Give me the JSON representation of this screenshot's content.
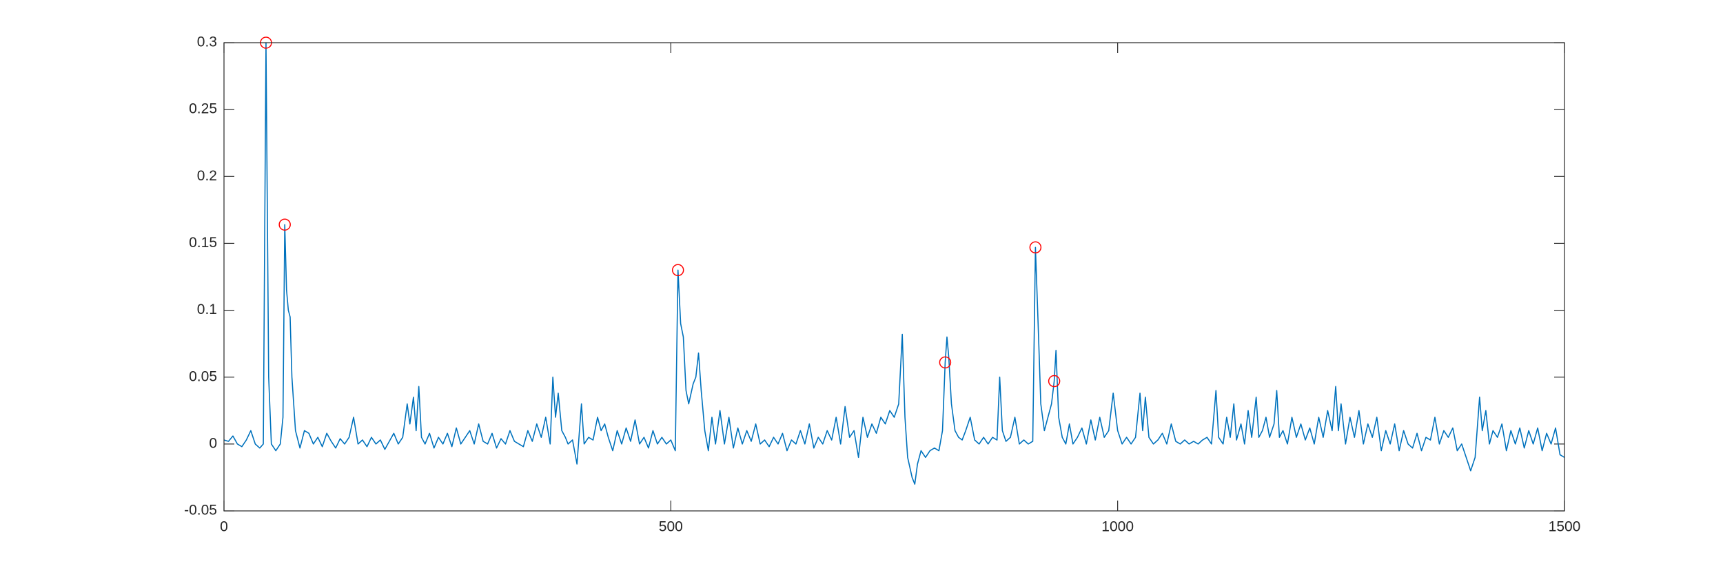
{
  "chart_data": {
    "type": "line",
    "xlim": [
      0,
      1500
    ],
    "xticks": [
      0,
      500,
      1000,
      1500
    ],
    "ylim": [
      -0.05,
      0.3
    ],
    "yticks": [
      -0.05,
      0,
      0.05,
      0.1,
      0.15,
      0.2,
      0.25,
      0.3
    ],
    "series": [
      {
        "color": "#0072bd",
        "x": [
          0,
          5,
          10,
          15,
          20,
          25,
          30,
          35,
          40,
          44,
          47,
          50,
          53,
          58,
          63,
          66,
          68,
          70,
          72,
          74,
          76,
          78,
          80,
          85,
          90,
          95,
          100,
          105,
          110,
          115,
          120,
          125,
          130,
          135,
          140,
          145,
          150,
          155,
          160,
          165,
          170,
          175,
          180,
          185,
          190,
          195,
          200,
          205,
          208,
          212,
          215,
          218,
          221,
          225,
          230,
          235,
          240,
          245,
          250,
          255,
          260,
          265,
          270,
          275,
          280,
          285,
          290,
          295,
          300,
          305,
          310,
          315,
          320,
          325,
          330,
          335,
          340,
          345,
          350,
          355,
          360,
          365,
          368,
          371,
          374,
          378,
          382,
          385,
          390,
          395,
          400,
          403,
          408,
          413,
          418,
          422,
          426,
          430,
          435,
          440,
          445,
          450,
          455,
          460,
          465,
          470,
          475,
          480,
          485,
          490,
          495,
          500,
          505,
          508,
          511,
          514,
          517,
          520,
          525,
          528,
          531,
          534,
          538,
          542,
          546,
          550,
          555,
          560,
          565,
          570,
          575,
          580,
          585,
          590,
          595,
          600,
          605,
          610,
          615,
          620,
          625,
          630,
          635,
          640,
          645,
          650,
          655,
          660,
          665,
          670,
          675,
          680,
          685,
          690,
          695,
          700,
          705,
          710,
          715,
          720,
          725,
          730,
          735,
          740,
          745,
          750,
          755,
          759,
          762,
          765,
          770,
          773,
          776,
          780,
          785,
          790,
          795,
          800,
          804,
          807,
          809,
          811,
          814,
          818,
          822,
          826,
          830,
          835,
          840,
          845,
          850,
          855,
          860,
          865,
          868,
          871,
          875,
          880,
          885,
          890,
          895,
          900,
          905,
          908,
          911,
          914,
          918,
          922,
          926,
          929,
          931,
          934,
          938,
          942,
          946,
          950,
          955,
          960,
          965,
          970,
          975,
          980,
          985,
          990,
          995,
          1000,
          1005,
          1010,
          1015,
          1020,
          1025,
          1028,
          1031,
          1035,
          1040,
          1045,
          1050,
          1055,
          1060,
          1065,
          1070,
          1075,
          1080,
          1085,
          1090,
          1095,
          1100,
          1105,
          1110,
          1113,
          1118,
          1122,
          1126,
          1130,
          1133,
          1138,
          1142,
          1146,
          1150,
          1155,
          1158,
          1162,
          1166,
          1170,
          1175,
          1178,
          1181,
          1185,
          1190,
          1195,
          1200,
          1205,
          1210,
          1215,
          1220,
          1225,
          1230,
          1235,
          1240,
          1244,
          1247,
          1250,
          1255,
          1260,
          1265,
          1270,
          1275,
          1280,
          1285,
          1290,
          1295,
          1300,
          1305,
          1310,
          1315,
          1320,
          1325,
          1330,
          1335,
          1340,
          1345,
          1350,
          1355,
          1360,
          1365,
          1370,
          1375,
          1380,
          1385,
          1390,
          1395,
          1400,
          1405,
          1408,
          1412,
          1416,
          1420,
          1425,
          1430,
          1435,
          1440,
          1445,
          1450,
          1455,
          1460,
          1465,
          1470,
          1475,
          1480,
          1485,
          1490,
          1495,
          1500
        ],
        "values": [
          0.003,
          0.002,
          0.006,
          0,
          -0.002,
          0.003,
          0.01,
          0,
          -0.003,
          0,
          0.3,
          0.05,
          0,
          -0.005,
          0,
          0.02,
          0.164,
          0.115,
          0.1,
          0.095,
          0.05,
          0.03,
          0.01,
          -0.003,
          0.01,
          0.008,
          0,
          0.005,
          -0.002,
          0.008,
          0.002,
          -0.003,
          0.004,
          0,
          0.005,
          0.02,
          0,
          0.003,
          -0.002,
          0.005,
          0,
          0.003,
          -0.004,
          0.002,
          0.008,
          0,
          0.005,
          0.03,
          0.015,
          0.035,
          0.01,
          0.043,
          0.005,
          0,
          0.008,
          -0.003,
          0.005,
          0,
          0.008,
          -0.002,
          0.012,
          0,
          0.005,
          0.01,
          0,
          0.015,
          0.002,
          0,
          0.008,
          -0.003,
          0.004,
          0,
          0.01,
          0.002,
          0,
          -0.002,
          0.01,
          0.002,
          0.015,
          0.005,
          0.02,
          0,
          0.05,
          0.02,
          0.038,
          0.01,
          0.005,
          0,
          0.003,
          -0.015,
          0.03,
          0,
          0.005,
          0.003,
          0.02,
          0.01,
          0.015,
          0.005,
          -0.005,
          0.01,
          0,
          0.012,
          0.002,
          0.018,
          0,
          0.005,
          -0.003,
          0.01,
          0,
          0.005,
          0,
          0.003,
          -0.005,
          0.13,
          0.09,
          0.08,
          0.04,
          0.03,
          0.045,
          0.05,
          0.068,
          0.04,
          0.01,
          -0.005,
          0.02,
          0,
          0.025,
          0,
          0.02,
          -0.003,
          0.012,
          0,
          0.01,
          0.002,
          0.015,
          0,
          0.003,
          -0.002,
          0.005,
          0,
          0.008,
          -0.005,
          0.003,
          0,
          0.01,
          0,
          0.015,
          -0.003,
          0.005,
          0,
          0.01,
          0.003,
          0.02,
          0,
          0.028,
          0.005,
          0.01,
          -0.01,
          0.02,
          0.005,
          0.015,
          0.008,
          0.02,
          0.015,
          0.025,
          0.02,
          0.03,
          0.082,
          0.02,
          -0.01,
          -0.025,
          -0.03,
          -0.015,
          -0.005,
          -0.01,
          -0.005,
          -0.003,
          -0.005,
          0.01,
          0.061,
          0.08,
          0.065,
          0.03,
          0.01,
          0.005,
          0.003,
          0.01,
          0.02,
          0.003,
          0,
          0.005,
          0,
          0.005,
          0.003,
          0.05,
          0.01,
          0.002,
          0.005,
          0.02,
          0,
          0.003,
          0,
          0.002,
          0.147,
          0.09,
          0.03,
          0.01,
          0.02,
          0.03,
          0.047,
          0.07,
          0.02,
          0.005,
          0,
          0.015,
          0,
          0.005,
          0.012,
          0,
          0.018,
          0.003,
          0.02,
          0.005,
          0.01,
          0.038,
          0.01,
          0,
          0.005,
          0,
          0.005,
          0.038,
          0.01,
          0.035,
          0.005,
          0,
          0.003,
          0.008,
          0,
          0.015,
          0.002,
          0,
          0.003,
          0,
          0.002,
          0,
          0.003,
          0.005,
          0,
          0.04,
          0.005,
          0,
          0.02,
          0.005,
          0.03,
          0.003,
          0.015,
          0,
          0.025,
          0.005,
          0.035,
          0.005,
          0.01,
          0.02,
          0.005,
          0.015,
          0.04,
          0.005,
          0.01,
          0,
          0.02,
          0.005,
          0.015,
          0.003,
          0.012,
          0,
          0.02,
          0.005,
          0.025,
          0.01,
          0.043,
          0.01,
          0.03,
          0,
          0.02,
          0.005,
          0.025,
          0,
          0.015,
          0.005,
          0.02,
          -0.005,
          0.01,
          0,
          0.015,
          -0.005,
          0.01,
          0,
          -0.003,
          0.008,
          -0.005,
          0.005,
          0.003,
          0.02,
          0,
          0.01,
          0.005,
          0.012,
          -0.005,
          0,
          -0.01,
          -0.02,
          -0.01,
          0.035,
          0.01,
          0.025,
          0,
          0.01,
          0.005,
          0.015,
          -0.005,
          0.01,
          0,
          0.012,
          -0.003,
          0.01,
          0,
          0.012,
          -0.005,
          0.008,
          0,
          0.012,
          -0.008,
          -0.01
        ]
      },
      {
        "color": "#ff0000",
        "marker": "circle",
        "x": [
          47,
          68,
          508,
          807,
          908,
          929
        ],
        "values": [
          0.3,
          0.164,
          0.13,
          0.061,
          0.147,
          0.047
        ]
      }
    ]
  }
}
